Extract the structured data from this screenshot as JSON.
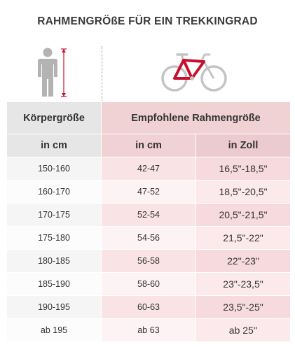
{
  "title": "RAHMENGRÖßE FÜR EIN TREKKINGRAD",
  "icons": {
    "person": "person-height-icon",
    "bike": "bicycle-frame-icon",
    "frame_color": "#c8102e",
    "person_color": "#b3b3b3",
    "measure_color": "#c8102e",
    "wheel_color": "#c4c4c4"
  },
  "table": {
    "header_body_height": "Körpergröße",
    "header_frame_size": "Empfohlene Rahmengröße",
    "unit_cm_body": "in cm",
    "unit_cm_frame": "in cm",
    "unit_inch_frame": "in Zoll",
    "rows": [
      {
        "height": "150-160",
        "cm": "42-47",
        "inch": "16,5\"-18,5\""
      },
      {
        "height": "160-170",
        "cm": "47-52",
        "inch": "18,5\"-20,5\""
      },
      {
        "height": "170-175",
        "cm": "52-54",
        "inch": "20,5\"-21,5\""
      },
      {
        "height": "175-180",
        "cm": "54-56",
        "inch": "21,5\"-22\""
      },
      {
        "height": "180-185",
        "cm": "56-58",
        "inch": "22\"-23\""
      },
      {
        "height": "185-190",
        "cm": "58-60",
        "inch": "23\"-23,5\""
      },
      {
        "height": "190-195",
        "cm": "60-63",
        "inch": "23,5\"-25\""
      },
      {
        "height": "ab 195",
        "cm": "ab 63",
        "inch": "ab 25''"
      }
    ]
  }
}
